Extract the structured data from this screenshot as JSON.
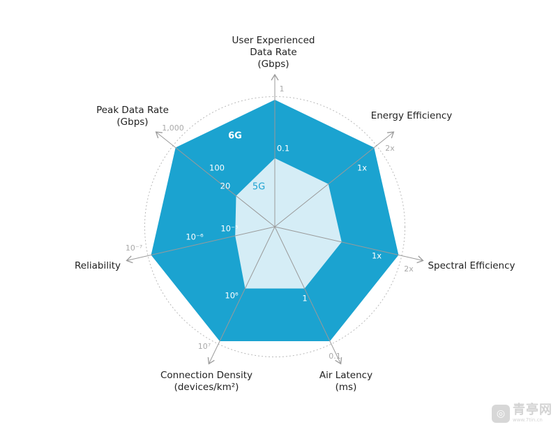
{
  "chart_data": {
    "type": "radar",
    "title": "",
    "axes": [
      {
        "label_lines": [
          "User Experienced",
          "Data Rate",
          "(Gbps)"
        ],
        "outer_tick": "1",
        "tick_6g": "",
        "tick_5g": "0.1"
      },
      {
        "label_lines": [
          "Energy Efficiency"
        ],
        "outer_tick": "2x",
        "tick_6g": "",
        "tick_5g": "1x"
      },
      {
        "label_lines": [
          "Spectral Efficiency"
        ],
        "outer_tick": "2x",
        "tick_6g": "",
        "tick_5g": "1x"
      },
      {
        "label_lines": [
          "Air Latency",
          "(ms)"
        ],
        "outer_tick": "0.1",
        "tick_6g": "",
        "tick_5g": "1"
      },
      {
        "label_lines": [
          "Connection Density",
          "(devices/km²)"
        ],
        "outer_tick": "10⁷",
        "tick_6g": "",
        "tick_5g": "10⁶"
      },
      {
        "label_lines": [
          "Reliability"
        ],
        "outer_tick": "10⁻⁷",
        "tick_6g": "10⁻⁶",
        "tick_5g": "10⁻⁵"
      },
      {
        "label_lines": [
          "Peak Data Rate",
          "(Gbps)"
        ],
        "outer_tick": "1,000",
        "tick_6g": "100",
        "tick_5g": "20"
      }
    ],
    "series": [
      {
        "name": "6G",
        "values": [
          1.0,
          1.0,
          1.0,
          1.0,
          1.0,
          1.0,
          1.0
        ],
        "color": "#1ba3d0"
      },
      {
        "name": "5G",
        "values": [
          0.54,
          0.54,
          0.54,
          0.54,
          0.54,
          0.32,
          0.39
        ],
        "color": "#d5edf6"
      }
    ],
    "grid": "dashed-circles",
    "legend": "inline-labels"
  },
  "watermark": {
    "glyph": "◎",
    "name": "青亭网",
    "url": "www.7tin.cn"
  }
}
